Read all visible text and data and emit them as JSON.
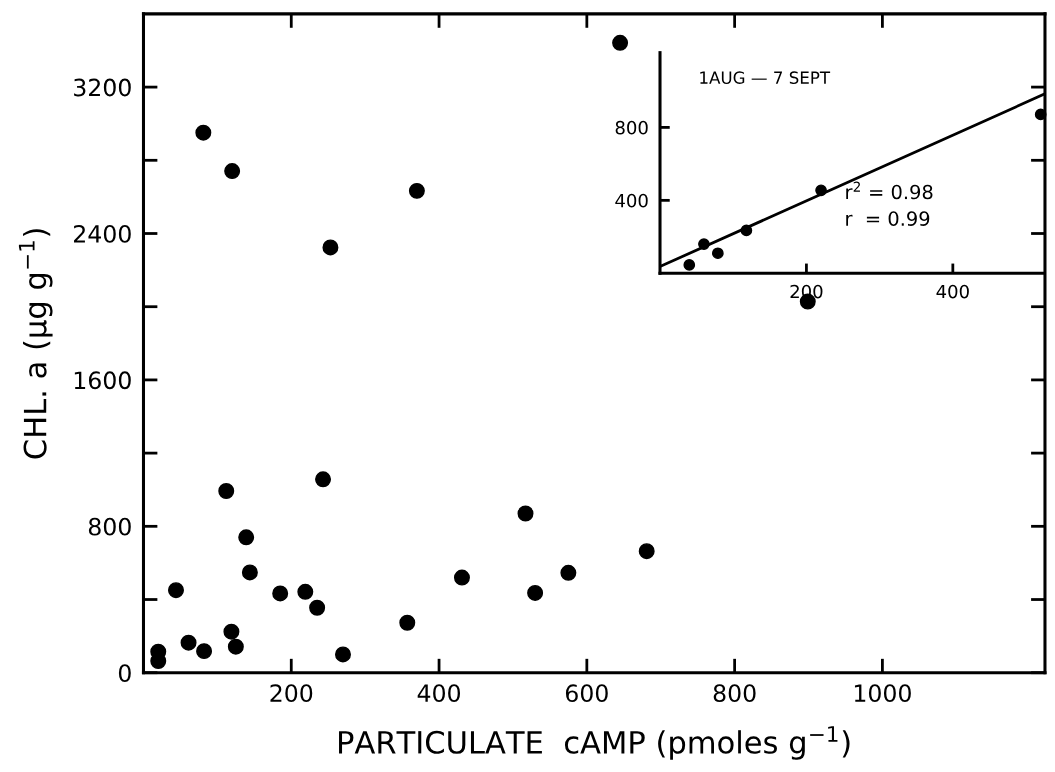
{
  "chart_data": [
    {
      "type": "scatter",
      "xlabel": "PARTICULATE  cAMP (pmoles g$^{−1}$)",
      "ylabel": "CHL. a (μg g$^{−1}$)",
      "marker": "circle",
      "grid": false,
      "legend": false,
      "xlim": [
        0,
        1220
      ],
      "ylim": [
        0,
        3600
      ],
      "xticks": [
        200,
        400,
        600,
        800,
        1000
      ],
      "yticks": [
        0,
        {
          "value": 400,
          "label": null
        },
        800,
        {
          "value": 1200,
          "label": null
        },
        1600,
        {
          "value": 2000,
          "label": null
        },
        2400,
        {
          "value": 2800,
          "label": null
        },
        3200
      ],
      "series": [
        {
          "color": "#000000",
          "x": [
            20,
            20,
            44,
            61,
            82,
            112,
            119,
            125,
            139,
            144,
            185,
            219,
            235,
            243,
            270,
            357,
            431,
            517,
            530,
            575,
            681,
            81,
            120,
            253,
            370,
            645,
            899
          ],
          "values": [
            115,
            64,
            451,
            164,
            118,
            993,
            224,
            142,
            740,
            548,
            433,
            442,
            355,
            1057,
            100,
            273,
            520,
            870,
            436,
            546,
            664,
            2951,
            2741,
            2324,
            2633,
            3442,
            2028
          ]
        }
      ]
    },
    {
      "type": "scatter",
      "marker": "circle",
      "grid": false,
      "legend": false,
      "xlim": [
        0,
        525
      ],
      "ylim": [
        0,
        1210
      ],
      "xticks": [
        200,
        400
      ],
      "yticks": [
        400,
        800
      ],
      "annotations": [
        "1AUG — 7 SEPT",
        "r$^{2}$ = 0.98",
        "r  = 0.99"
      ],
      "series": [
        {
          "color": "#000000",
          "x": [
            40,
            60,
            79,
            118,
            220,
            520
          ],
          "values": [
            46,
            160,
            110,
            235,
            455,
            871
          ]
        },
        {
          "type": "line",
          "marker": "none",
          "color": "#000000",
          "x": [
            0,
            524
          ],
          "values": [
            37,
            981
          ]
        }
      ]
    }
  ]
}
